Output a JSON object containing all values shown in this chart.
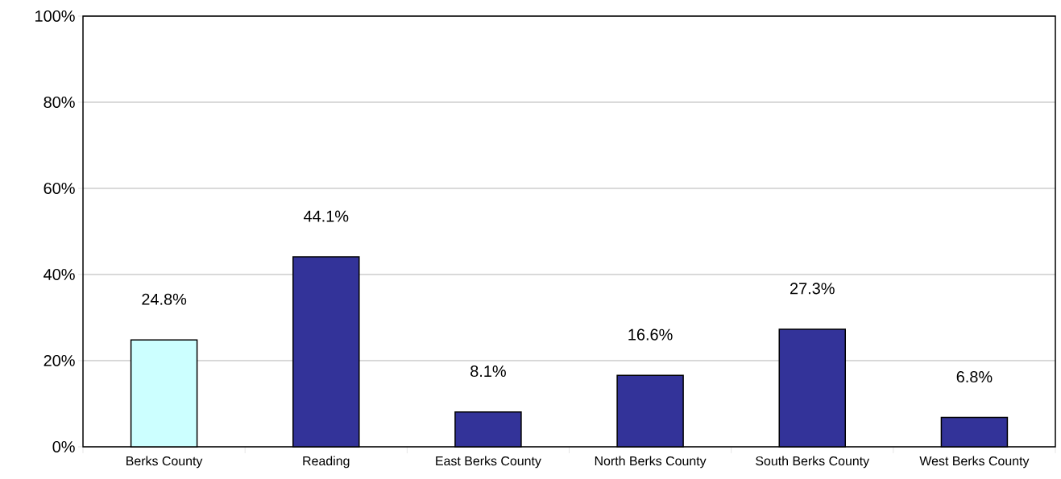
{
  "chart_data": {
    "type": "bar",
    "categories": [
      "Berks County",
      "Reading",
      "East Berks County",
      "North Berks County",
      "South Berks County",
      "West Berks County"
    ],
    "values": [
      24.8,
      44.1,
      8.1,
      16.6,
      27.3,
      6.8
    ],
    "colors": [
      "#ccffff",
      "#333399",
      "#333399",
      "#333399",
      "#333399",
      "#333399"
    ],
    "value_labels": [
      "24.8%",
      "44.1%",
      "8.1%",
      "16.6%",
      "27.3%",
      "6.8%"
    ],
    "ylim": [
      0,
      100
    ],
    "yticks": [
      {
        "value": 0,
        "label": "0%"
      },
      {
        "value": 20,
        "label": "20%"
      },
      {
        "value": 40,
        "label": "40%"
      },
      {
        "value": 60,
        "label": "60%"
      },
      {
        "value": 80,
        "label": "80%"
      },
      {
        "value": 100,
        "label": "100%"
      }
    ],
    "grid": "y"
  }
}
